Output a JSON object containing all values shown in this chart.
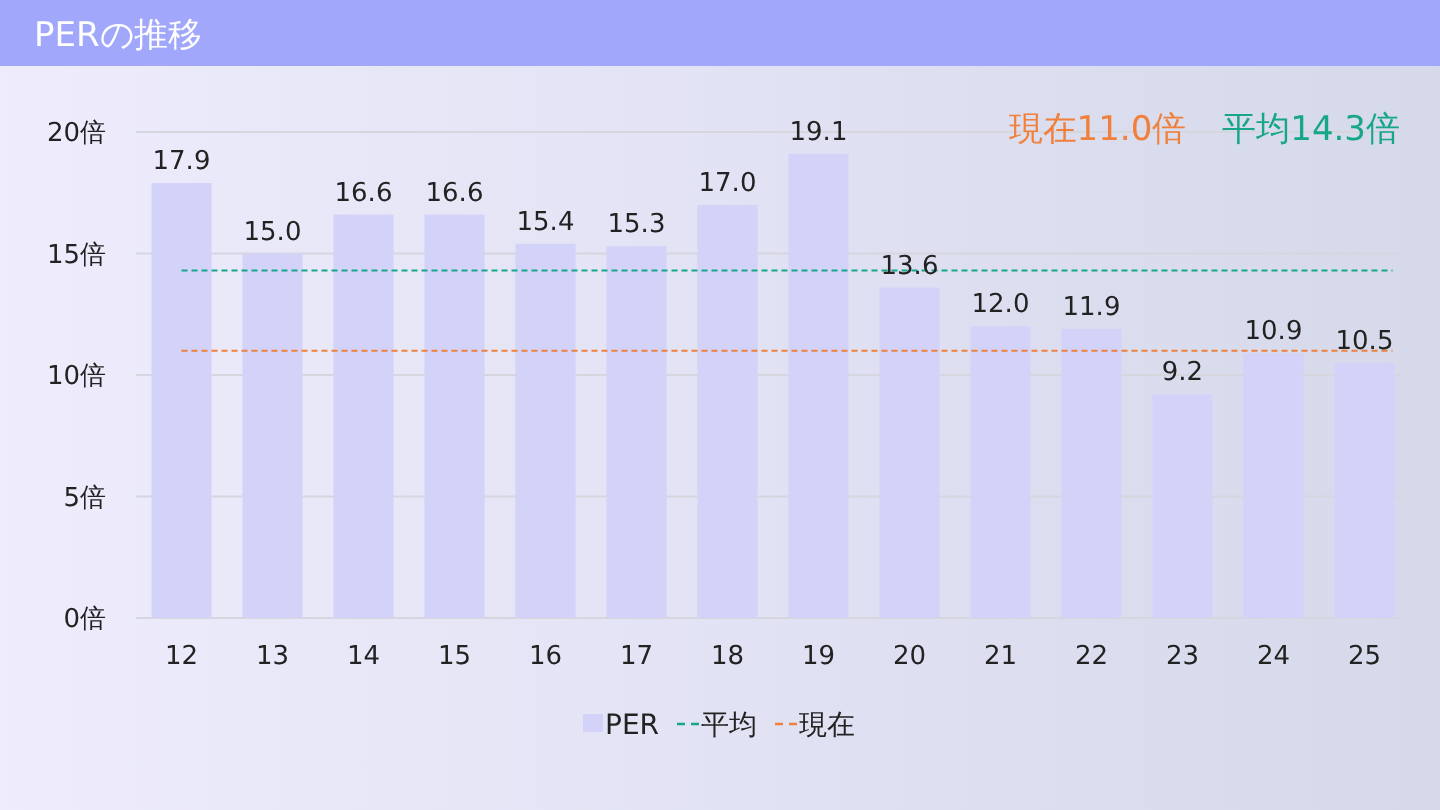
{
  "chart_data": {
    "type": "bar",
    "title": "PERの推移",
    "categories": [
      "12",
      "13",
      "14",
      "15",
      "16",
      "17",
      "18",
      "19",
      "20",
      "21",
      "22",
      "23",
      "24",
      "25"
    ],
    "series": [
      {
        "name": "PER",
        "color": "#d3d3fa",
        "values": [
          17.9,
          15.0,
          16.6,
          16.6,
          15.4,
          15.3,
          17.0,
          19.1,
          13.6,
          12.0,
          11.9,
          9.2,
          10.9,
          10.5
        ],
        "value_labels": [
          "17.9",
          "15.0",
          "16.6",
          "16.6",
          "15.4",
          "15.3",
          "17.0",
          "19.1",
          "13.6",
          "12.0",
          "11.9",
          "9.2",
          "10.9",
          "10.5"
        ]
      }
    ],
    "ylim": [
      0,
      20
    ],
    "yticks": [
      {
        "value": 0,
        "label": "0倍"
      },
      {
        "value": 5,
        "label": "5倍"
      },
      {
        "value": 10,
        "label": "10倍"
      },
      {
        "value": 15,
        "label": "15倍"
      },
      {
        "value": 20,
        "label": "20倍"
      }
    ],
    "grid": "y",
    "legend": "bottom",
    "ref_lines": [
      {
        "axis": "y",
        "value": 14.3,
        "label": "平均",
        "color": "#17a689",
        "line_style": "dashed"
      },
      {
        "axis": "y",
        "value": 11.0,
        "label": "現在",
        "color": "#f0803c",
        "line_style": "dashed"
      }
    ],
    "annotations": [
      "現在11.0倍",
      "平均14.3倍"
    ]
  }
}
